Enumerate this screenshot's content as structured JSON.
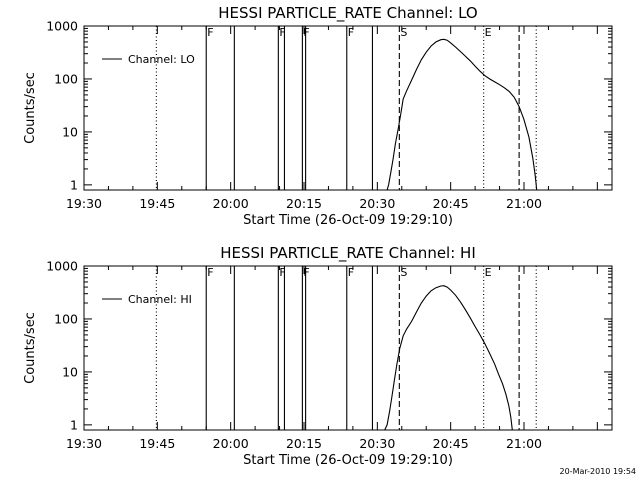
{
  "footer": {
    "timestamp": "20-Mar-2010 19:54"
  },
  "chart_data": [
    {
      "type": "line",
      "title": "HESSI PARTICLE_RATE Channel: LO",
      "xlabel": "Start Time (26-Oct-09 19:29:10)",
      "ylabel": "Counts/sec",
      "y_scale": "log",
      "ylim": [
        0.8,
        1000
      ],
      "y_ticks": [
        "1",
        "10",
        "100",
        "1000"
      ],
      "x_range_minutes_after_19_30": [
        0,
        108
      ],
      "x_ticks": [
        "19:30",
        "19:45",
        "20:00",
        "20:15",
        "20:30",
        "20:45",
        "21:00"
      ],
      "legend": {
        "label": "Channel: LO",
        "position": "top-left"
      },
      "vertical_markers": [
        {
          "time": "19:44:50",
          "minutes": 14.8,
          "style": "dotted",
          "label": ""
        },
        {
          "time": "19:55:00",
          "minutes": 25.0,
          "style": "solid",
          "label": "F"
        },
        {
          "time": "20:00:45",
          "minutes": 30.75,
          "style": "solid",
          "label": ""
        },
        {
          "time": "20:09:45",
          "minutes": 39.75,
          "style": "solid",
          "label": "F"
        },
        {
          "time": "20:11:00",
          "minutes": 41.0,
          "style": "solid",
          "label": ""
        },
        {
          "time": "20:14:40",
          "minutes": 44.67,
          "style": "solid",
          "label": "F"
        },
        {
          "time": "20:15:20",
          "minutes": 45.33,
          "style": "solid",
          "label": ""
        },
        {
          "time": "20:23:45",
          "minutes": 53.75,
          "style": "solid",
          "label": "F"
        },
        {
          "time": "20:29:00",
          "minutes": 59.0,
          "style": "solid",
          "label": ""
        },
        {
          "time": "20:34:30",
          "minutes": 64.5,
          "style": "dashed",
          "label": "S"
        },
        {
          "time": "20:51:45",
          "minutes": 81.75,
          "style": "dotted",
          "label": "E"
        },
        {
          "time": "20:59:00",
          "minutes": 89.0,
          "style": "dashed",
          "label": ""
        },
        {
          "time": "21:02:30",
          "minutes": 92.5,
          "style": "dotted",
          "label": ""
        }
      ],
      "series": [
        {
          "name": "Channel: LO",
          "points": [
            [
              62.0,
              0.8
            ],
            [
              62.3,
              1.0
            ],
            [
              62.7,
              1.6
            ],
            [
              63.2,
              3.0
            ],
            [
              63.7,
              6.0
            ],
            [
              64.3,
              12.0
            ],
            [
              64.8,
              22.0
            ],
            [
              65.3,
              42.0
            ],
            [
              66.0,
              60.0
            ],
            [
              67.0,
              95.0
            ],
            [
              68.0,
              150.0
            ],
            [
              69.0,
              230.0
            ],
            [
              70.0,
              320.0
            ],
            [
              71.0,
              420.0
            ],
            [
              72.0,
              500.0
            ],
            [
              73.0,
              550.0
            ],
            [
              73.6,
              560.0
            ],
            [
              74.3,
              540.0
            ],
            [
              75.0,
              480.0
            ],
            [
              76.0,
              400.0
            ],
            [
              77.0,
              330.0
            ],
            [
              78.0,
              270.0
            ],
            [
              79.0,
              220.0
            ],
            [
              80.0,
              175.0
            ],
            [
              81.0,
              140.0
            ],
            [
              82.0,
              115.0
            ],
            [
              83.0,
              100.0
            ],
            [
              84.0,
              88.0
            ],
            [
              85.0,
              78.0
            ],
            [
              86.0,
              68.0
            ],
            [
              87.0,
              58.0
            ],
            [
              88.0,
              45.0
            ],
            [
              89.0,
              30.0
            ],
            [
              90.0,
              17.0
            ],
            [
              91.0,
              8.0
            ],
            [
              91.8,
              3.2
            ],
            [
              92.3,
              1.5
            ],
            [
              92.6,
              0.8
            ]
          ]
        }
      ]
    },
    {
      "type": "line",
      "title": "HESSI PARTICLE_RATE Channel: HI",
      "xlabel": "Start Time (26-Oct-09 19:29:10)",
      "ylabel": "Counts/sec",
      "y_scale": "log",
      "ylim": [
        0.8,
        1000
      ],
      "y_ticks": [
        "1",
        "10",
        "100",
        "1000"
      ],
      "x_range_minutes_after_19_30": [
        0,
        108
      ],
      "x_ticks": [
        "19:30",
        "19:45",
        "20:00",
        "20:15",
        "20:30",
        "20:45",
        "21:00"
      ],
      "legend": {
        "label": "Channel: HI",
        "position": "top-left"
      },
      "vertical_markers": [
        {
          "time": "19:44:50",
          "minutes": 14.8,
          "style": "dotted",
          "label": ""
        },
        {
          "time": "19:55:00",
          "minutes": 25.0,
          "style": "solid",
          "label": "F"
        },
        {
          "time": "20:00:45",
          "minutes": 30.75,
          "style": "solid",
          "label": ""
        },
        {
          "time": "20:09:45",
          "minutes": 39.75,
          "style": "solid",
          "label": "F"
        },
        {
          "time": "20:11:00",
          "minutes": 41.0,
          "style": "solid",
          "label": ""
        },
        {
          "time": "20:14:40",
          "minutes": 44.67,
          "style": "solid",
          "label": "F"
        },
        {
          "time": "20:15:20",
          "minutes": 45.33,
          "style": "solid",
          "label": ""
        },
        {
          "time": "20:23:45",
          "minutes": 53.75,
          "style": "solid",
          "label": "F"
        },
        {
          "time": "20:29:00",
          "minutes": 59.0,
          "style": "solid",
          "label": ""
        },
        {
          "time": "20:34:30",
          "minutes": 64.5,
          "style": "dashed",
          "label": "S"
        },
        {
          "time": "20:51:45",
          "minutes": 81.75,
          "style": "dotted",
          "label": "E"
        },
        {
          "time": "20:59:00",
          "minutes": 89.0,
          "style": "dashed",
          "label": ""
        },
        {
          "time": "21:02:30",
          "minutes": 92.5,
          "style": "dotted",
          "label": ""
        }
      ],
      "series": [
        {
          "name": "Channel: HI",
          "points": [
            [
              61.5,
              0.8
            ],
            [
              62.0,
              1.0
            ],
            [
              62.5,
              1.8
            ],
            [
              63.0,
              3.5
            ],
            [
              63.5,
              7.0
            ],
            [
              64.0,
              14.0
            ],
            [
              64.6,
              28.0
            ],
            [
              65.3,
              48.0
            ],
            [
              66.0,
              65.0
            ],
            [
              67.0,
              90.0
            ],
            [
              68.0,
              135.0
            ],
            [
              69.0,
              200.0
            ],
            [
              70.0,
              270.0
            ],
            [
              71.0,
              340.0
            ],
            [
              72.0,
              390.0
            ],
            [
              73.0,
              420.0
            ],
            [
              73.6,
              425.0
            ],
            [
              74.3,
              400.0
            ],
            [
              75.0,
              350.0
            ],
            [
              76.0,
              280.0
            ],
            [
              77.0,
              210.0
            ],
            [
              78.0,
              150.0
            ],
            [
              79.0,
              105.0
            ],
            [
              80.0,
              72.0
            ],
            [
              81.0,
              50.0
            ],
            [
              82.0,
              34.0
            ],
            [
              83.0,
              22.0
            ],
            [
              84.0,
              14.0
            ],
            [
              84.8,
              9.0
            ],
            [
              85.6,
              6.0
            ],
            [
              86.3,
              3.8
            ],
            [
              86.9,
              2.3
            ],
            [
              87.3,
              1.4
            ],
            [
              87.6,
              0.8
            ]
          ]
        }
      ]
    }
  ]
}
